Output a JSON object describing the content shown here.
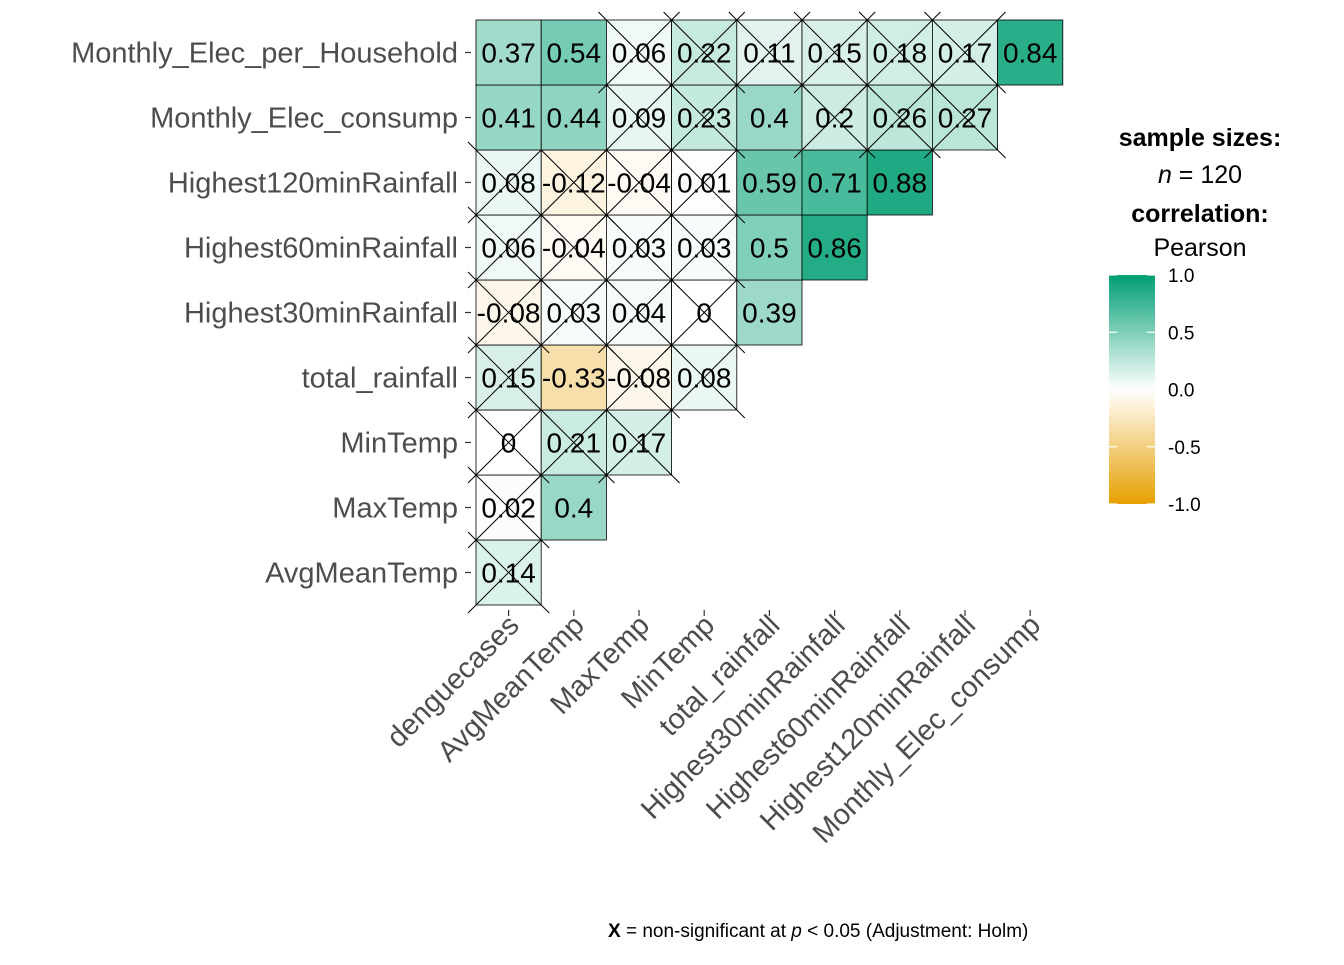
{
  "chart_data": {
    "type": "heatmap",
    "x_labels": [
      "denguecases",
      "AvgMeanTemp",
      "MaxTemp",
      "MinTemp",
      "total_rainfall",
      "Highest30minRainfall",
      "Highest60minRainfall",
      "Highest120minRainfall",
      "Monthly_Elec_consump"
    ],
    "y_labels": [
      "AvgMeanTemp",
      "MaxTemp",
      "MinTemp",
      "total_rainfall",
      "Highest30minRainfall",
      "Highest60minRainfall",
      "Highest120minRainfall",
      "Monthly_Elec_consump",
      "Monthly_Elec_per_Household"
    ],
    "cells": [
      {
        "row": "AvgMeanTemp",
        "col": "denguecases",
        "value": 0.14,
        "label": "0.14",
        "nonsignificant": true
      },
      {
        "row": "MaxTemp",
        "col": "denguecases",
        "value": 0.02,
        "label": "0.02",
        "nonsignificant": true
      },
      {
        "row": "MaxTemp",
        "col": "AvgMeanTemp",
        "value": 0.4,
        "label": "0.4",
        "nonsignificant": false
      },
      {
        "row": "MinTemp",
        "col": "denguecases",
        "value": 0,
        "label": "0",
        "nonsignificant": true
      },
      {
        "row": "MinTemp",
        "col": "AvgMeanTemp",
        "value": 0.21,
        "label": "0.21",
        "nonsignificant": true
      },
      {
        "row": "MinTemp",
        "col": "MaxTemp",
        "value": 0.17,
        "label": "0.17",
        "nonsignificant": true
      },
      {
        "row": "total_rainfall",
        "col": "denguecases",
        "value": 0.15,
        "label": "0.15",
        "nonsignificant": true
      },
      {
        "row": "total_rainfall",
        "col": "AvgMeanTemp",
        "value": -0.33,
        "label": "-0.33",
        "nonsignificant": false
      },
      {
        "row": "total_rainfall",
        "col": "MaxTemp",
        "value": -0.08,
        "label": "-0.08",
        "nonsignificant": true
      },
      {
        "row": "total_rainfall",
        "col": "MinTemp",
        "value": 0.08,
        "label": "0.08",
        "nonsignificant": true
      },
      {
        "row": "Highest30minRainfall",
        "col": "denguecases",
        "value": -0.08,
        "label": "-0.08",
        "nonsignificant": true
      },
      {
        "row": "Highest30minRainfall",
        "col": "AvgMeanTemp",
        "value": 0.03,
        "label": "0.03",
        "nonsignificant": true
      },
      {
        "row": "Highest30minRainfall",
        "col": "MaxTemp",
        "value": 0.04,
        "label": "0.04",
        "nonsignificant": true
      },
      {
        "row": "Highest30minRainfall",
        "col": "MinTemp",
        "value": 0,
        "label": "0",
        "nonsignificant": true
      },
      {
        "row": "Highest30minRainfall",
        "col": "total_rainfall",
        "value": 0.39,
        "label": "0.39",
        "nonsignificant": false
      },
      {
        "row": "Highest60minRainfall",
        "col": "denguecases",
        "value": 0.06,
        "label": "0.06",
        "nonsignificant": true
      },
      {
        "row": "Highest60minRainfall",
        "col": "AvgMeanTemp",
        "value": -0.04,
        "label": "-0.04",
        "nonsignificant": true
      },
      {
        "row": "Highest60minRainfall",
        "col": "MaxTemp",
        "value": 0.03,
        "label": "0.03",
        "nonsignificant": true
      },
      {
        "row": "Highest60minRainfall",
        "col": "MinTemp",
        "value": 0.03,
        "label": "0.03",
        "nonsignificant": true
      },
      {
        "row": "Highest60minRainfall",
        "col": "total_rainfall",
        "value": 0.5,
        "label": "0.5",
        "nonsignificant": false
      },
      {
        "row": "Highest60minRainfall",
        "col": "Highest30minRainfall",
        "value": 0.86,
        "label": "0.86",
        "nonsignificant": false
      },
      {
        "row": "Highest120minRainfall",
        "col": "denguecases",
        "value": 0.08,
        "label": "0.08",
        "nonsignificant": true
      },
      {
        "row": "Highest120minRainfall",
        "col": "AvgMeanTemp",
        "value": -0.12,
        "label": "-0.12",
        "nonsignificant": true
      },
      {
        "row": "Highest120minRainfall",
        "col": "MaxTemp",
        "value": -0.04,
        "label": "-0.04",
        "nonsignificant": true
      },
      {
        "row": "Highest120minRainfall",
        "col": "MinTemp",
        "value": 0.01,
        "label": "0.01",
        "nonsignificant": true
      },
      {
        "row": "Highest120minRainfall",
        "col": "total_rainfall",
        "value": 0.59,
        "label": "0.59",
        "nonsignificant": false
      },
      {
        "row": "Highest120minRainfall",
        "col": "Highest30minRainfall",
        "value": 0.71,
        "label": "0.71",
        "nonsignificant": false
      },
      {
        "row": "Highest120minRainfall",
        "col": "Highest60minRainfall",
        "value": 0.88,
        "label": "0.88",
        "nonsignificant": false
      },
      {
        "row": "Monthly_Elec_consump",
        "col": "denguecases",
        "value": 0.41,
        "label": "0.41",
        "nonsignificant": false
      },
      {
        "row": "Monthly_Elec_consump",
        "col": "AvgMeanTemp",
        "value": 0.44,
        "label": "0.44",
        "nonsignificant": false
      },
      {
        "row": "Monthly_Elec_consump",
        "col": "MaxTemp",
        "value": 0.09,
        "label": "0.09",
        "nonsignificant": true
      },
      {
        "row": "Monthly_Elec_consump",
        "col": "MinTemp",
        "value": 0.23,
        "label": "0.23",
        "nonsignificant": true
      },
      {
        "row": "Monthly_Elec_consump",
        "col": "total_rainfall",
        "value": 0.4,
        "label": "0.4",
        "nonsignificant": false
      },
      {
        "row": "Monthly_Elec_consump",
        "col": "Highest30minRainfall",
        "value": 0.2,
        "label": "0.2",
        "nonsignificant": true
      },
      {
        "row": "Monthly_Elec_consump",
        "col": "Highest60minRainfall",
        "value": 0.26,
        "label": "0.26",
        "nonsignificant": true
      },
      {
        "row": "Monthly_Elec_consump",
        "col": "Highest120minRainfall",
        "value": 0.27,
        "label": "0.27",
        "nonsignificant": true
      },
      {
        "row": "Monthly_Elec_per_Household",
        "col": "denguecases",
        "value": 0.37,
        "label": "0.37",
        "nonsignificant": false
      },
      {
        "row": "Monthly_Elec_per_Household",
        "col": "AvgMeanTemp",
        "value": 0.54,
        "label": "0.54",
        "nonsignificant": false
      },
      {
        "row": "Monthly_Elec_per_Household",
        "col": "MaxTemp",
        "value": 0.06,
        "label": "0.06",
        "nonsignificant": true
      },
      {
        "row": "Monthly_Elec_per_Household",
        "col": "MinTemp",
        "value": 0.22,
        "label": "0.22",
        "nonsignificant": true
      },
      {
        "row": "Monthly_Elec_per_Household",
        "col": "total_rainfall",
        "value": 0.11,
        "label": "0.11",
        "nonsignificant": true
      },
      {
        "row": "Monthly_Elec_per_Household",
        "col": "Highest30minRainfall",
        "value": 0.15,
        "label": "0.15",
        "nonsignificant": true
      },
      {
        "row": "Monthly_Elec_per_Household",
        "col": "Highest60minRainfall",
        "value": 0.18,
        "label": "0.18",
        "nonsignificant": true
      },
      {
        "row": "Monthly_Elec_per_Household",
        "col": "Highest120minRainfall",
        "value": 0.17,
        "label": "0.17",
        "nonsignificant": true
      },
      {
        "row": "Monthly_Elec_consump",
        "col": "Monthly_Elec_consump",
        "value": 0.84,
        "label": "0.84",
        "nonsignificant": false
      }
    ],
    "legend": {
      "title_sample": "sample sizes:",
      "n_symbol": "n",
      "n_text": " = 120",
      "title_correlation": "correlation:",
      "method": "Pearson",
      "ticks": [
        "1.0",
        "0.5",
        "0.0",
        "-0.5",
        "-1.0"
      ],
      "tick_values": [
        1.0,
        0.5,
        0.0,
        -0.5,
        -1.0
      ],
      "range": [
        -1,
        1
      ],
      "position": "right"
    },
    "caption": {
      "marker": "X",
      "text_1": " = non-significant at ",
      "p_symbol": "p",
      "text_2": " < 0.05 (Adjustment: Holm)"
    },
    "colors": {
      "low": "#E69F00",
      "mid": "#FFFFFF",
      "high": "#009E73"
    }
  }
}
